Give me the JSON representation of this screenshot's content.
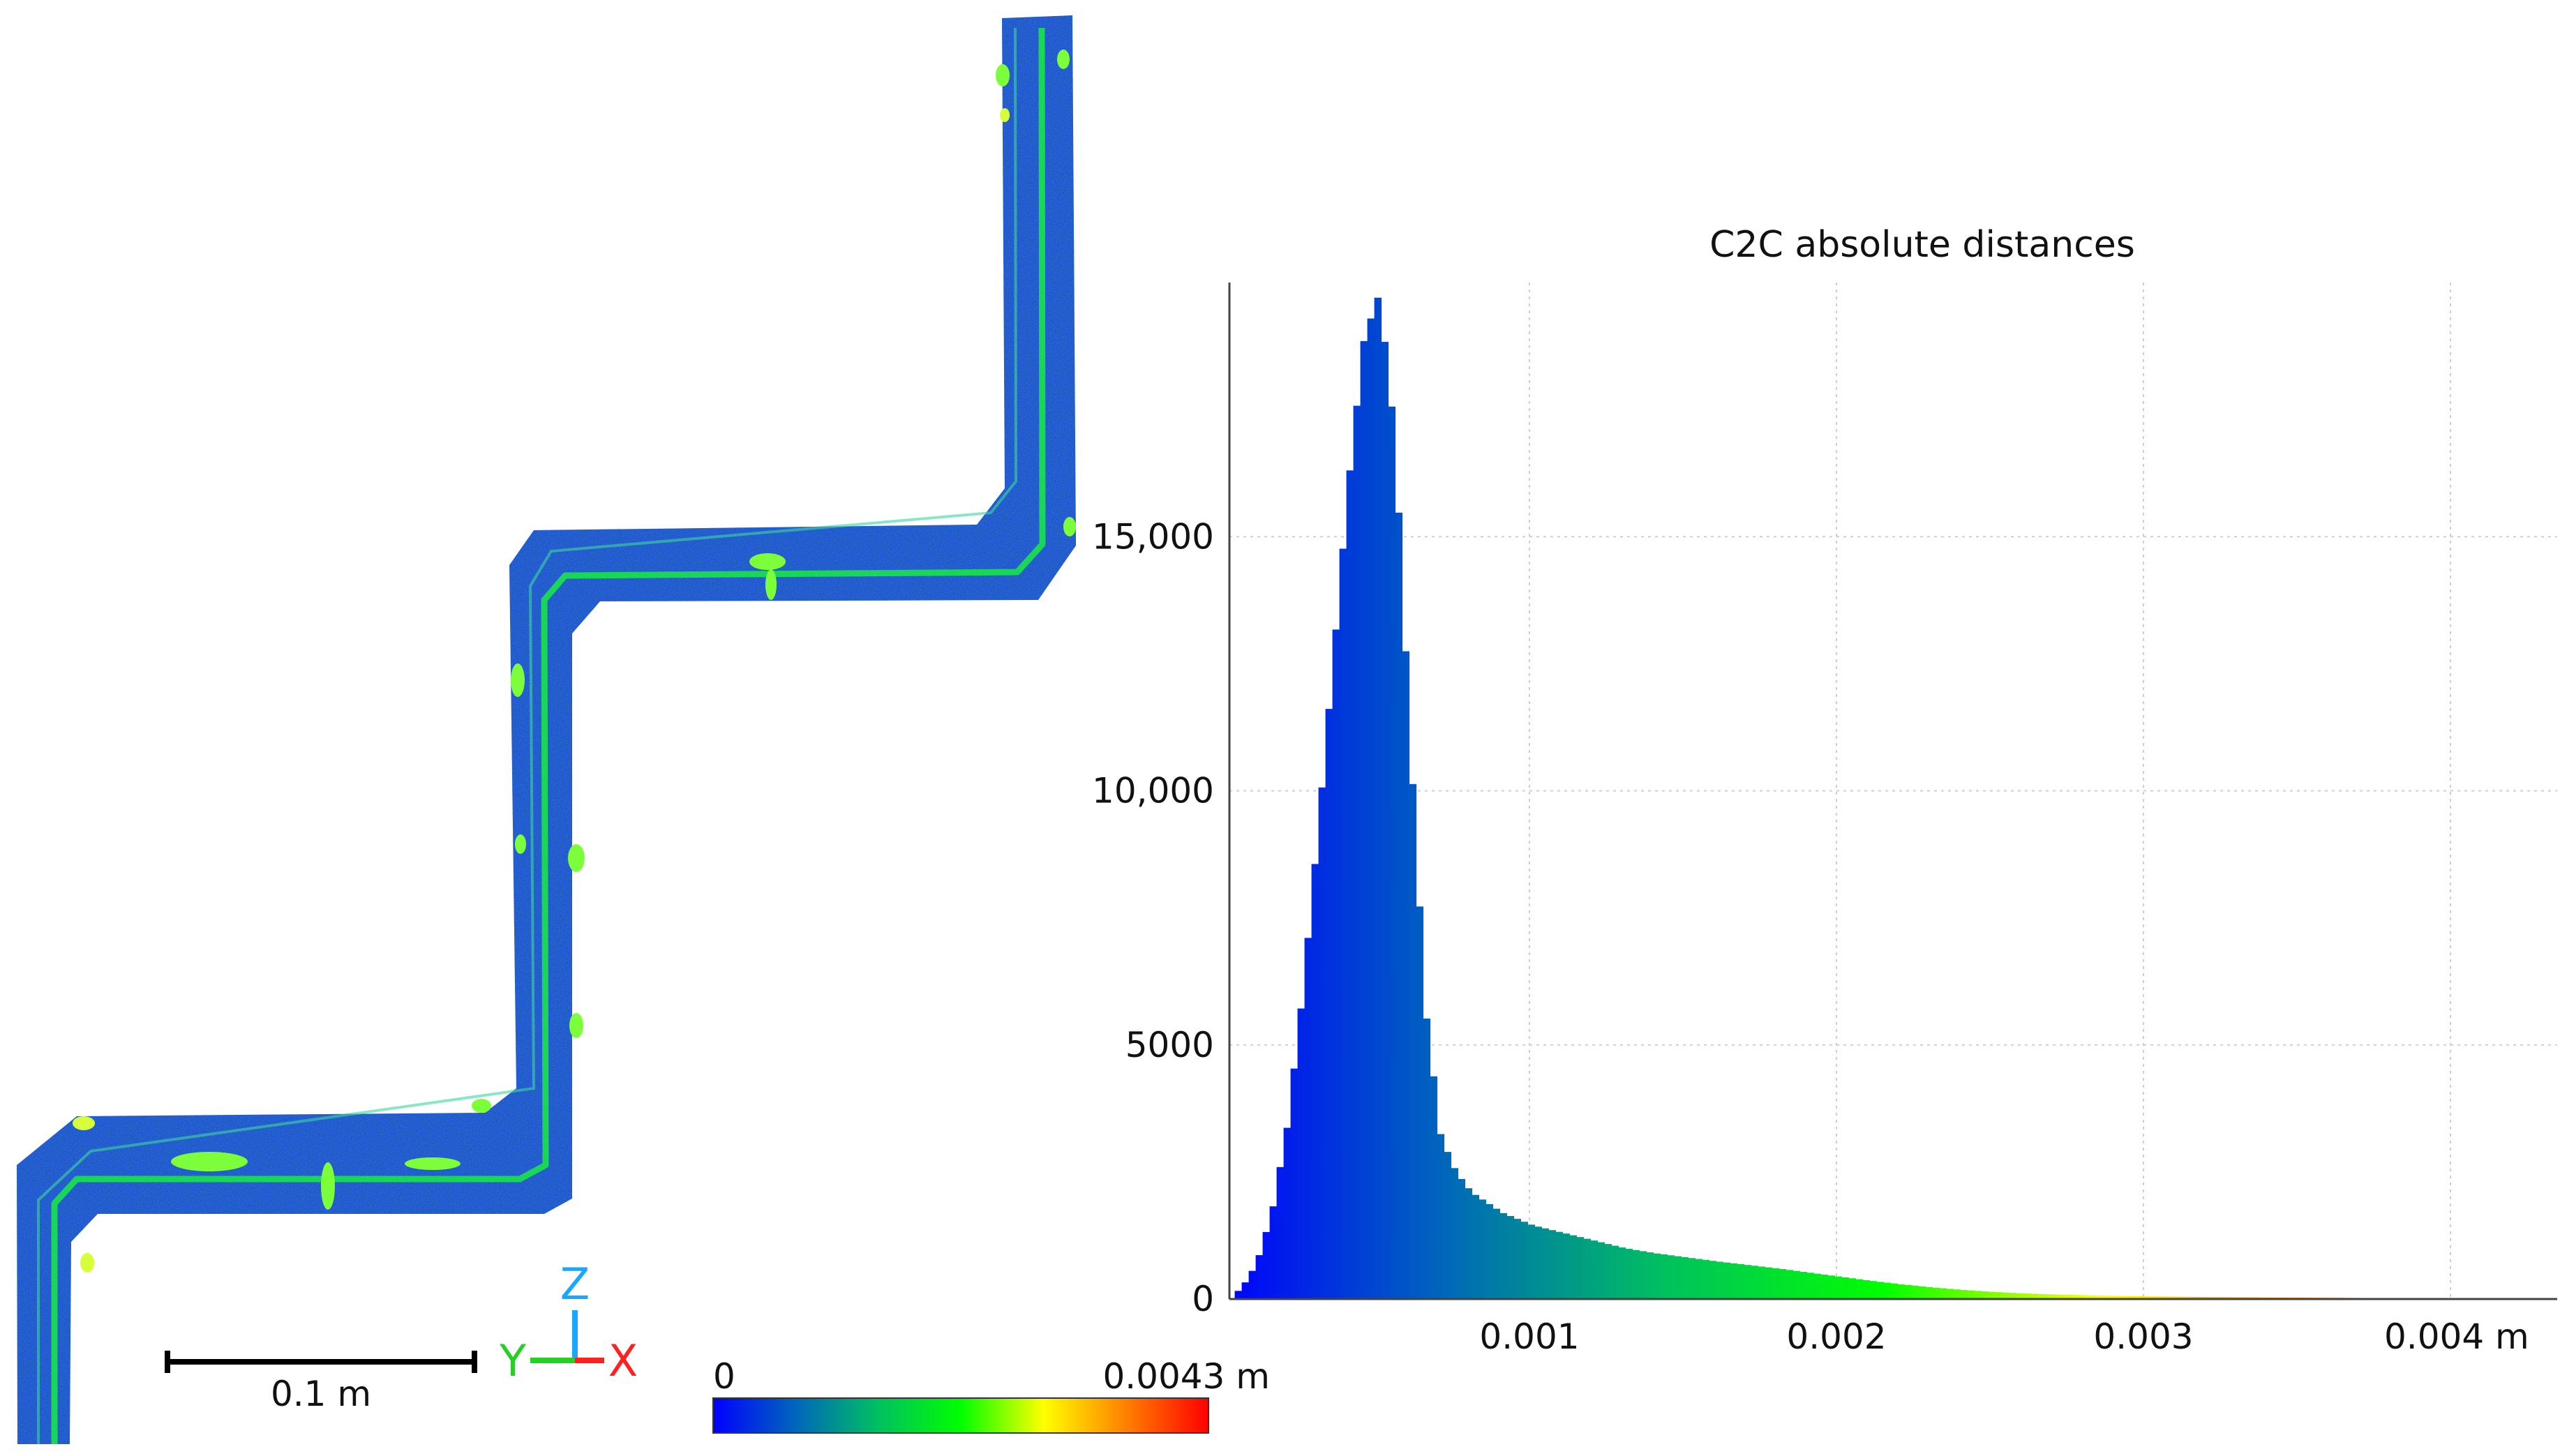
{
  "scene": {
    "scale_bar_label": "0.1 m",
    "axis_letters": {
      "z": "Z",
      "y": "Y",
      "x": "X"
    },
    "colors": {
      "z": "#1aa7ff",
      "y": "#22d122",
      "x": "#ff2020",
      "track_base": "#1f4fd6",
      "track_highlight": "#19e34a"
    }
  },
  "color_scale": {
    "min_label": "0",
    "max_label": "0.0043 m",
    "stops": [
      "#0000ff",
      "#0066bb",
      "#00c060",
      "#00ff00",
      "#ffff00",
      "#ff8000",
      "#ff0000"
    ]
  },
  "chart_data": {
    "type": "bar",
    "title": "C2C absolute distances",
    "xlabel": "",
    "ylabel": "",
    "unit_suffix": " m",
    "xlim": [
      0,
      0.0043
    ],
    "ylim": [
      0,
      20000
    ],
    "x_ticks": [
      0.001,
      0.002,
      0.003,
      0.004
    ],
    "x_tick_labels": [
      "0.001",
      "0.002",
      "0.003",
      "0.004 m"
    ],
    "y_ticks": [
      0,
      5000,
      10000,
      15000
    ],
    "y_tick_labels": [
      "0",
      "5000",
      "10,000",
      "15,000"
    ],
    "grid": true,
    "peak": {
      "x": 0.00048,
      "y": 19800
    },
    "bins": {
      "x": [
        5e-05,
        0.0001,
        0.00015,
        0.0002,
        0.00025,
        0.0003,
        0.00035,
        0.0004,
        0.00045,
        0.0005,
        0.00055,
        0.0006,
        0.00065,
        0.0007,
        0.00075,
        0.0008,
        0.0009,
        0.001,
        0.0011,
        0.0012,
        0.0013,
        0.0014,
        0.0015,
        0.0016,
        0.0017,
        0.0018,
        0.0019,
        0.002,
        0.0021,
        0.0022,
        0.0023,
        0.0024,
        0.0025,
        0.0026,
        0.0027,
        0.0028,
        0.0029,
        0.003,
        0.0032,
        0.0034,
        0.0036,
        0.0038,
        0.004,
        0.0042
      ],
      "y": [
        200,
        700,
        1700,
        3400,
        6000,
        9200,
        12600,
        16100,
        18900,
        19800,
        17000,
        11000,
        5700,
        3200,
        2500,
        2100,
        1700,
        1450,
        1300,
        1150,
        1000,
        900,
        820,
        740,
        670,
        600,
        520,
        440,
        360,
        290,
        230,
        180,
        140,
        110,
        90,
        75,
        62,
        52,
        40,
        30,
        24,
        18,
        14,
        10
      ]
    }
  }
}
